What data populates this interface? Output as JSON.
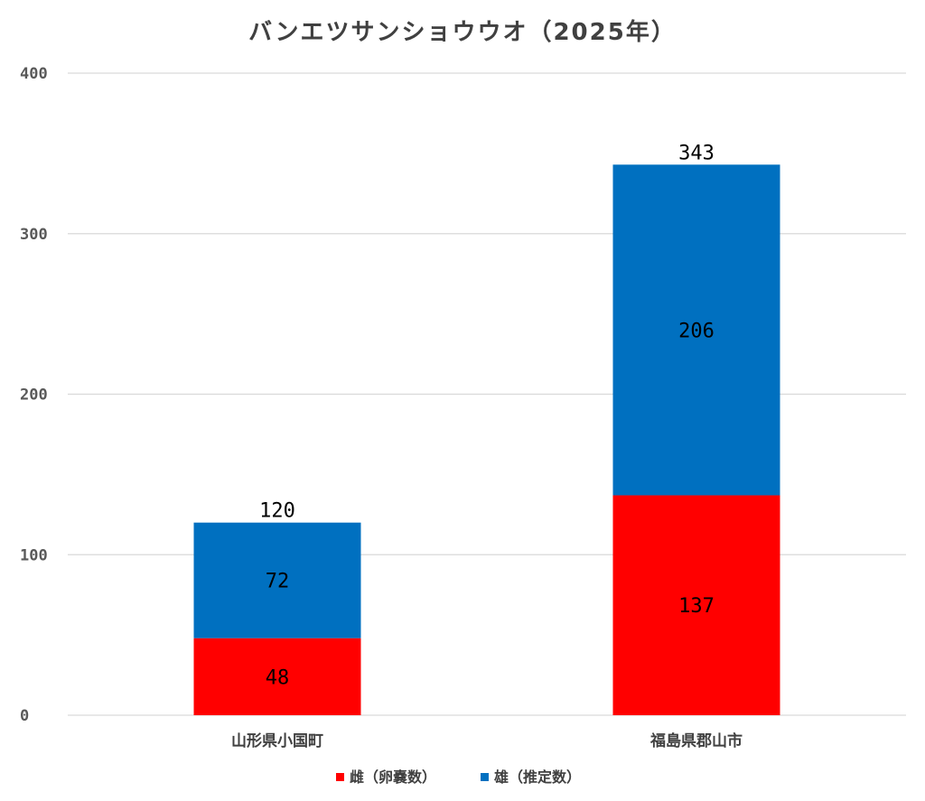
{
  "chart_data": {
    "type": "bar",
    "stacked": true,
    "title": "バンエツサンショウウオ（2025年）",
    "categories": [
      "山形県小国町",
      "福島県郡山市"
    ],
    "series": [
      {
        "name": "雌（卵嚢数）",
        "values": [
          48,
          137
        ],
        "color": "#ff0000"
      },
      {
        "name": "雄（推定数）",
        "values": [
          72,
          206
        ],
        "color": "#0070c0"
      }
    ],
    "totals": [
      120,
      343
    ],
    "ylim": [
      0,
      400
    ],
    "yticks": [
      0,
      100,
      200,
      300,
      400
    ],
    "grid": true,
    "legend_position": "bottom"
  }
}
